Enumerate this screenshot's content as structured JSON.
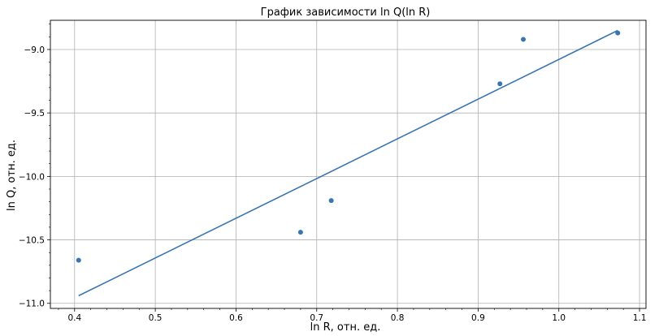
{
  "chart_data": {
    "type": "scatter",
    "title": "График зависимости ln Q(ln R)",
    "xlabel": "ln R, отн. ед.",
    "ylabel": "ln Q, отн. ед.",
    "xlim": [
      0.37,
      1.108
    ],
    "ylim": [
      -11.04,
      -8.77
    ],
    "xticks": [
      0.4,
      0.5,
      0.6,
      0.7,
      0.8,
      0.9,
      1.0,
      1.1
    ],
    "yticks": [
      -11.0,
      -10.5,
      -10.0,
      -9.5,
      -9.0
    ],
    "xtick_labels": [
      "0.4",
      "0.5",
      "0.6",
      "0.7",
      "0.8",
      "0.9",
      "1.0",
      "1.1"
    ],
    "ytick_labels": [
      "−11.0",
      "−10.5",
      "−10.0",
      "−9.5",
      "−9.0"
    ],
    "grid": true,
    "series": [
      {
        "kind": "scatter",
        "color": "#3a75b0",
        "points": [
          {
            "x": 0.405,
            "y": -10.66
          },
          {
            "x": 0.68,
            "y": -10.44
          },
          {
            "x": 0.718,
            "y": -10.19
          },
          {
            "x": 0.927,
            "y": -9.27
          },
          {
            "x": 0.956,
            "y": -8.92
          },
          {
            "x": 1.073,
            "y": -8.87
          }
        ]
      },
      {
        "kind": "line",
        "color": "#3a75b0",
        "points": [
          {
            "x": 0.405,
            "y": -10.94
          },
          {
            "x": 1.073,
            "y": -8.85
          }
        ]
      }
    ]
  }
}
